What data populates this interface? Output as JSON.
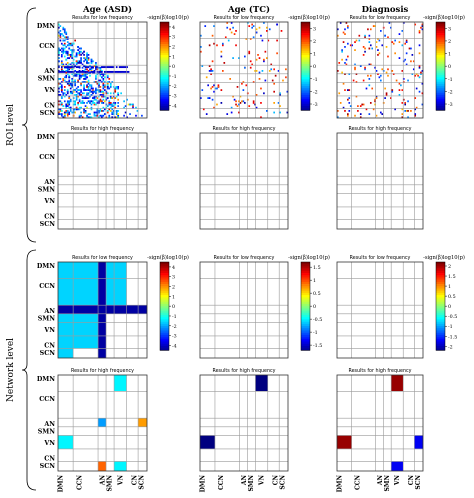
{
  "figure": {
    "row_groups": [
      "ROI level",
      "Network level"
    ],
    "column_titles": [
      "Age (ASD)",
      "Age (TC)",
      "Diagnosis"
    ],
    "panel_titles": {
      "low": "Results for low frequency",
      "high": "Results for high frequency"
    },
    "colorbar_label": "-sign(β)log10(p)",
    "row_labels": [
      "DMN",
      "CCN",
      "AN",
      "SMN",
      "VN",
      "CN",
      "SCN"
    ],
    "col_labels": [
      "DMN",
      "CCN",
      "AN",
      "SMN",
      "VN",
      "CN",
      "SCN"
    ]
  },
  "chart_data": [
    {
      "type": "heatmap",
      "id": "roi-asd-low",
      "level": "ROI level",
      "column": "Age (ASD)",
      "title": "Results for low frequency",
      "colorbar_ticks": [
        4,
        3,
        2,
        1,
        0,
        -1,
        -2,
        -3,
        -4
      ],
      "clim": [
        -4.5,
        4.5
      ],
      "pattern": "roi-dense",
      "cells": []
    },
    {
      "type": "heatmap",
      "id": "roi-tc-low",
      "level": "ROI level",
      "column": "Age (TC)",
      "title": "Results for low frequency",
      "colorbar_ticks": [
        3,
        2,
        1,
        0,
        -1,
        -2,
        -3
      ],
      "clim": [
        -3.5,
        3.5
      ],
      "pattern": "roi-sparse",
      "cells": []
    },
    {
      "type": "heatmap",
      "id": "roi-diag-low",
      "level": "ROI level",
      "column": "Diagnosis",
      "title": "Results for low frequency",
      "colorbar_ticks": [
        3,
        2,
        1,
        0,
        -1,
        -2,
        -3
      ],
      "clim": [
        -3.5,
        3.5
      ],
      "pattern": "roi-medium",
      "cells": []
    },
    {
      "type": "heatmap",
      "id": "roi-asd-high",
      "level": "ROI level",
      "column": "Age (ASD)",
      "title": "Results for high frequency",
      "cells": []
    },
    {
      "type": "heatmap",
      "id": "roi-tc-high",
      "level": "ROI level",
      "column": "Age (TC)",
      "title": "Results for high frequency",
      "cells": []
    },
    {
      "type": "heatmap",
      "id": "roi-diag-high",
      "level": "ROI level",
      "column": "Diagnosis",
      "title": "Results for high frequency",
      "cells": []
    },
    {
      "type": "heatmap",
      "id": "net-asd-low",
      "level": "Network level",
      "column": "Age (ASD)",
      "title": "Results for low frequency",
      "colorbar_ticks": [
        4,
        3,
        2,
        1,
        0,
        -1,
        -2,
        -3,
        -4
      ],
      "clim": [
        -4.5,
        4.5
      ],
      "cells": [
        {
          "r": 0,
          "c": 0,
          "v": -1.5
        },
        {
          "r": 0,
          "c": 1,
          "v": -1.5
        },
        {
          "r": 0,
          "c": 2,
          "v": -4.2
        },
        {
          "r": 0,
          "c": 3,
          "v": -1.5
        },
        {
          "r": 0,
          "c": 4,
          "v": -1.5
        },
        {
          "r": 1,
          "c": 0,
          "v": -1.5
        },
        {
          "r": 1,
          "c": 1,
          "v": -1.5
        },
        {
          "r": 1,
          "c": 2,
          "v": -4.2
        },
        {
          "r": 1,
          "c": 3,
          "v": -1.5
        },
        {
          "r": 1,
          "c": 4,
          "v": -1.5
        },
        {
          "r": 2,
          "c": 0,
          "v": -4.2
        },
        {
          "r": 2,
          "c": 1,
          "v": -4.2
        },
        {
          "r": 2,
          "c": 2,
          "v": -4.2
        },
        {
          "r": 2,
          "c": 3,
          "v": -4.2
        },
        {
          "r": 2,
          "c": 4,
          "v": -4.2
        },
        {
          "r": 2,
          "c": 5,
          "v": -4.2
        },
        {
          "r": 2,
          "c": 6,
          "v": -4.2
        },
        {
          "r": 3,
          "c": 0,
          "v": -1.5
        },
        {
          "r": 3,
          "c": 1,
          "v": -1.5
        },
        {
          "r": 3,
          "c": 2,
          "v": -4.2
        },
        {
          "r": 4,
          "c": 0,
          "v": -1.5
        },
        {
          "r": 4,
          "c": 1,
          "v": -1.5
        },
        {
          "r": 4,
          "c": 2,
          "v": -4.2
        },
        {
          "r": 5,
          "c": 0,
          "v": -1.5
        },
        {
          "r": 5,
          "c": 1,
          "v": -1.5
        },
        {
          "r": 5,
          "c": 2,
          "v": -4.2
        },
        {
          "r": 6,
          "c": 0,
          "v": -1.5
        },
        {
          "r": 6,
          "c": 2,
          "v": -4.2
        }
      ]
    },
    {
      "type": "heatmap",
      "id": "net-tc-low",
      "level": "Network level",
      "column": "Age (TC)",
      "title": "Results for low frequency",
      "colorbar_ticks": [
        1.5,
        1,
        0.5,
        0,
        -0.5,
        -1,
        -1.5
      ],
      "clim": [
        -1.7,
        1.7
      ],
      "cells": []
    },
    {
      "type": "heatmap",
      "id": "net-diag-low",
      "level": "Network level",
      "column": "Diagnosis",
      "title": "Results for low frequency",
      "colorbar_ticks": [
        2,
        1.5,
        1,
        0.5,
        0,
        -0.5,
        -1,
        -1.5,
        -2
      ],
      "clim": [
        -2.2,
        2.2
      ],
      "cells": []
    },
    {
      "type": "heatmap",
      "id": "net-asd-high",
      "level": "Network level",
      "column": "Age (ASD)",
      "title": "Results for high frequency",
      "clim": [
        -4.5,
        4.5
      ],
      "cells": [
        {
          "r": 0,
          "c": 4,
          "v": -1.2
        },
        {
          "r": 2,
          "c": 2,
          "v": -2.0
        },
        {
          "r": 2,
          "c": 6,
          "v": 2.0
        },
        {
          "r": 4,
          "c": 0,
          "v": -1.2
        },
        {
          "r": 6,
          "c": 2,
          "v": 2.5
        },
        {
          "r": 6,
          "c": 4,
          "v": -1.2
        }
      ]
    },
    {
      "type": "heatmap",
      "id": "net-tc-high",
      "level": "Network level",
      "column": "Age (TC)",
      "title": "Results for high frequency",
      "clim": [
        -1.7,
        1.7
      ],
      "cells": [
        {
          "r": 0,
          "c": 4,
          "v": -1.7
        },
        {
          "r": 4,
          "c": 0,
          "v": -1.7
        }
      ]
    },
    {
      "type": "heatmap",
      "id": "net-diag-high",
      "level": "Network level",
      "column": "Diagnosis",
      "title": "Results for high frequency",
      "clim": [
        -2.2,
        2.2
      ],
      "cells": [
        {
          "r": 0,
          "c": 4,
          "v": 2.1
        },
        {
          "r": 4,
          "c": 0,
          "v": 2.1
        },
        {
          "r": 4,
          "c": 6,
          "v": -1.7
        },
        {
          "r": 6,
          "c": 4,
          "v": -1.7
        }
      ]
    }
  ]
}
